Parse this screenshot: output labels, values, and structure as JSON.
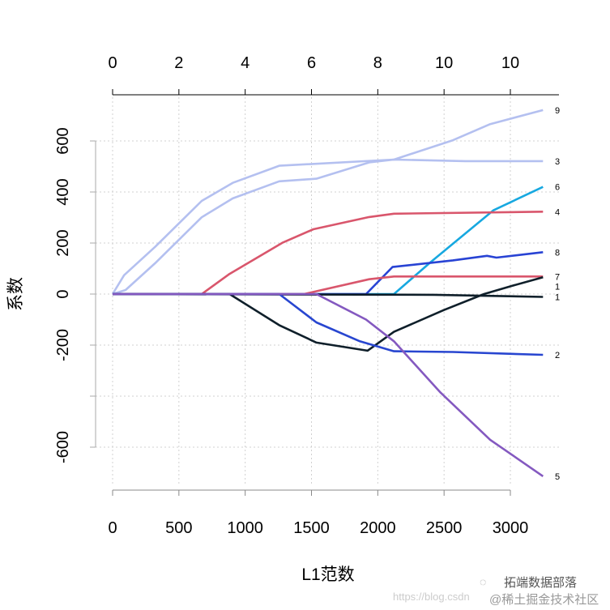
{
  "chart_data": {
    "type": "line",
    "title": "",
    "xlabel": "L1范数",
    "ylabel": "系数",
    "xlim": [
      0,
      3300
    ],
    "ylim": [
      -730,
      740
    ],
    "grid": true,
    "x_ticks": [
      "0",
      "500",
      "1000",
      "1500",
      "2000",
      "2500",
      "3000"
    ],
    "x_tick_values": [
      0,
      500,
      1000,
      1500,
      2000,
      2500,
      3000
    ],
    "y_ticks": [
      "600",
      "400",
      "200",
      "0",
      "-200",
      "",
      "-600"
    ],
    "y_tick_values": [
      600,
      400,
      200,
      0,
      -200,
      -400,
      -600
    ],
    "top_axis_ticks": [
      "0",
      "2",
      "4",
      "6",
      "8",
      "10",
      "10"
    ],
    "series": [
      {
        "name": "9",
        "color": "#b4c0f0",
        "points": [
          [
            0,
            0
          ],
          [
            98,
            16
          ],
          [
            321,
            121
          ],
          [
            672,
            301
          ],
          [
            906,
            375
          ],
          [
            1257,
            442
          ],
          [
            1537,
            452
          ],
          [
            1935,
            516
          ],
          [
            2122,
            527
          ],
          [
            2567,
            603
          ],
          [
            2848,
            666
          ],
          [
            3246,
            721
          ]
        ]
      },
      {
        "name": "3",
        "color": "#b4c0f0",
        "points": [
          [
            0,
            0
          ],
          [
            87,
            74
          ],
          [
            321,
            185
          ],
          [
            672,
            365
          ],
          [
            906,
            436
          ],
          [
            1257,
            503
          ],
          [
            2122,
            527
          ],
          [
            2661,
            521
          ],
          [
            3246,
            521
          ]
        ]
      },
      {
        "name": "6",
        "color": "#17a8e0",
        "points": [
          [
            0,
            0
          ],
          [
            2122,
            0
          ],
          [
            2403,
            127
          ],
          [
            2871,
            328
          ],
          [
            3246,
            420
          ]
        ]
      },
      {
        "name": "4",
        "color": "#d9566c",
        "points": [
          [
            0,
            0
          ],
          [
            672,
            0
          ],
          [
            882,
            79
          ],
          [
            1280,
            201
          ],
          [
            1514,
            254
          ],
          [
            1935,
            302
          ],
          [
            2122,
            315
          ],
          [
            3246,
            323
          ]
        ]
      },
      {
        "name": "8",
        "color": "#2843d4",
        "points": [
          [
            0,
            0
          ],
          [
            1912,
            0
          ],
          [
            2111,
            106
          ],
          [
            2567,
            132
          ],
          [
            2824,
            150
          ],
          [
            2895,
            143
          ],
          [
            3246,
            164
          ]
        ]
      },
      {
        "name": "7",
        "color": "#d9566c",
        "points": [
          [
            0,
            0
          ],
          [
            1444,
            0
          ],
          [
            1935,
            58
          ],
          [
            2122,
            69
          ],
          [
            3246,
            69
          ]
        ]
      },
      {
        "name": "1",
        "color": "#0f1f2a",
        "points": [
          [
            0,
            0
          ],
          [
            882,
            0
          ],
          [
            1257,
            -122
          ],
          [
            1537,
            -190
          ],
          [
            1923,
            -222
          ],
          [
            2122,
            -148
          ],
          [
            2497,
            -63
          ],
          [
            2801,
            0
          ],
          [
            3012,
            32
          ],
          [
            3246,
            66
          ]
        ]
      },
      {
        "name": "1",
        "color": "#0f1f2a",
        "points": [
          [
            0,
            0
          ],
          [
            2427,
            -3
          ],
          [
            3246,
            -11
          ]
        ]
      },
      {
        "name": "2",
        "color": "#2846d0",
        "points": [
          [
            0,
            0
          ],
          [
            1257,
            0
          ],
          [
            1537,
            -111
          ],
          [
            1865,
            -185
          ],
          [
            2122,
            -224
          ],
          [
            2567,
            -227
          ],
          [
            3246,
            -238
          ]
        ]
      },
      {
        "name": "5",
        "color": "#8459c0",
        "points": [
          [
            0,
            0
          ],
          [
            1537,
            0
          ],
          [
            1912,
            -100
          ],
          [
            2122,
            -185
          ],
          [
            2473,
            -386
          ],
          [
            2848,
            -571
          ],
          [
            3246,
            -714
          ]
        ]
      }
    ]
  },
  "watermark": {
    "line1": "拓端数据部落",
    "line2": "@稀土掘金技术社区",
    "url": "https://blog.csdn"
  }
}
